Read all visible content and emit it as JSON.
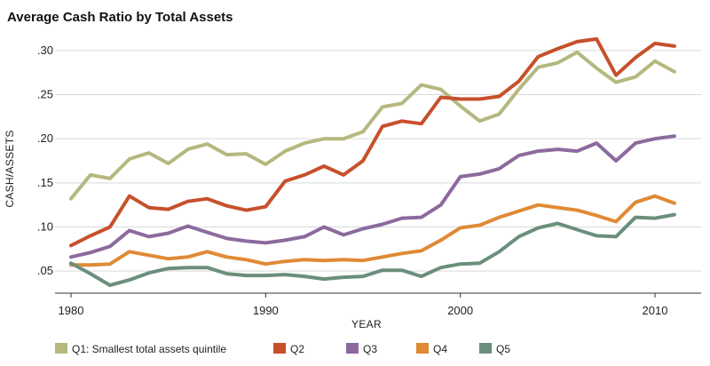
{
  "chart_data": {
    "type": "line",
    "title": "Average Cash Ratio by Total Assets",
    "xlabel": "YEAR",
    "ylabel": "CASH/ASSETS",
    "x": [
      1980,
      1981,
      1982,
      1983,
      1984,
      1985,
      1986,
      1987,
      1988,
      1989,
      1990,
      1991,
      1992,
      1993,
      1994,
      1995,
      1996,
      1997,
      1998,
      1999,
      2000,
      2001,
      2002,
      2003,
      2004,
      2005,
      2006,
      2007,
      2008,
      2009,
      2010,
      2011
    ],
    "x_ticks": [
      "1980",
      "1990",
      "2000",
      "2010"
    ],
    "x_tick_values": [
      1980,
      1990,
      2000,
      2010
    ],
    "xlim": [
      1979.7,
      2012
    ],
    "y_ticks": [
      ".05",
      ".10",
      ".15",
      ".20",
      ".25",
      ".30"
    ],
    "y_tick_values": [
      0.05,
      0.1,
      0.15,
      0.2,
      0.25,
      0.3
    ],
    "ylim": [
      0.025,
      0.322
    ],
    "grid": "horizontal",
    "legend_position": "bottom",
    "series": [
      {
        "name": "Q1: Smallest total assets quintile",
        "color": "#b5b87f",
        "values": [
          0.132,
          0.159,
          0.155,
          0.177,
          0.184,
          0.172,
          0.188,
          0.194,
          0.182,
          0.183,
          0.171,
          0.186,
          0.195,
          0.2,
          0.2,
          0.208,
          0.236,
          0.24,
          0.261,
          0.256,
          0.237,
          0.22,
          0.228,
          0.256,
          0.281,
          0.286,
          0.298,
          0.28,
          0.264,
          0.27,
          0.288,
          0.276
        ]
      },
      {
        "name": "Q2",
        "color": "#c7502b",
        "values": [
          0.079,
          0.09,
          0.1,
          0.135,
          0.122,
          0.12,
          0.129,
          0.132,
          0.124,
          0.119,
          0.123,
          0.152,
          0.159,
          0.169,
          0.159,
          0.175,
          0.214,
          0.22,
          0.217,
          0.247,
          0.245,
          0.245,
          0.248,
          0.265,
          0.293,
          0.302,
          0.31,
          0.313,
          0.272,
          0.292,
          0.308,
          0.305
        ]
      },
      {
        "name": "Q3",
        "color": "#8c6a9e",
        "values": [
          0.066,
          0.071,
          0.078,
          0.096,
          0.089,
          0.093,
          0.101,
          0.094,
          0.087,
          0.084,
          0.082,
          0.085,
          0.089,
          0.1,
          0.091,
          0.098,
          0.103,
          0.11,
          0.111,
          0.125,
          0.157,
          0.16,
          0.166,
          0.181,
          0.186,
          0.188,
          0.186,
          0.195,
          0.175,
          0.195,
          0.2,
          0.203
        ]
      },
      {
        "name": "Q4",
        "color": "#e08a35",
        "values": [
          0.057,
          0.057,
          0.058,
          0.072,
          0.068,
          0.064,
          0.066,
          0.072,
          0.066,
          0.063,
          0.058,
          0.061,
          0.063,
          0.062,
          0.063,
          0.062,
          0.066,
          0.07,
          0.073,
          0.085,
          0.099,
          0.102,
          0.111,
          0.118,
          0.125,
          0.122,
          0.119,
          0.113,
          0.106,
          0.128,
          0.135,
          0.127
        ]
      },
      {
        "name": "Q5",
        "color": "#6b8f7c",
        "values": [
          0.059,
          0.047,
          0.034,
          0.04,
          0.048,
          0.053,
          0.054,
          0.054,
          0.047,
          0.045,
          0.045,
          0.046,
          0.044,
          0.041,
          0.043,
          0.044,
          0.051,
          0.051,
          0.044,
          0.054,
          0.058,
          0.059,
          0.072,
          0.089,
          0.099,
          0.104,
          0.097,
          0.09,
          0.089,
          0.111,
          0.11,
          0.114
        ]
      }
    ]
  }
}
